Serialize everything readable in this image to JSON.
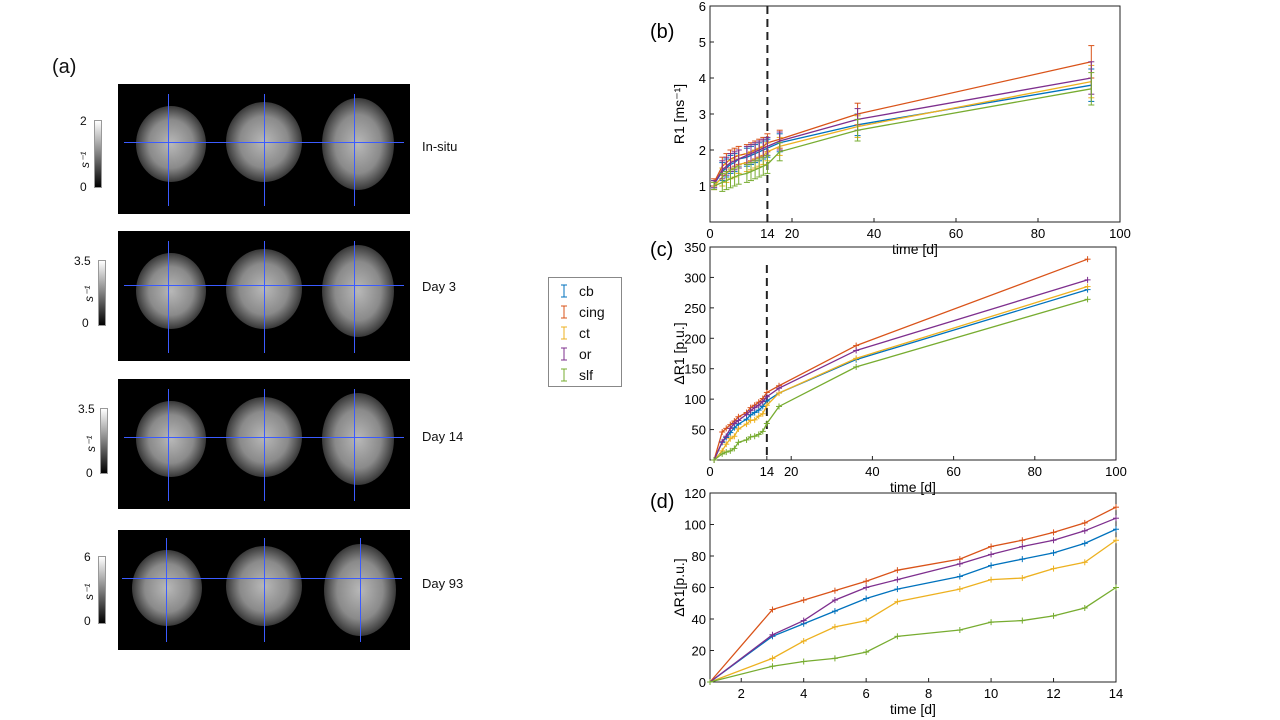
{
  "panel_a": {
    "label": "(a)",
    "rows": [
      {
        "day": "In-situ",
        "cmax": "2",
        "cmin": "0",
        "unit": "s⁻¹"
      },
      {
        "day": "Day 3",
        "cmax": "3.5",
        "cmin": "0",
        "unit": "s⁻¹"
      },
      {
        "day": "Day 14",
        "cmax": "3.5",
        "cmin": "0",
        "unit": "s⁻¹"
      },
      {
        "day": "Day 93",
        "cmax": "6",
        "cmin": "0",
        "unit": "s⁻¹"
      }
    ]
  },
  "legend": {
    "entries": [
      {
        "name": "cb",
        "color": "#0072BD"
      },
      {
        "name": "cing",
        "color": "#D95319"
      },
      {
        "name": "ct",
        "color": "#EDB120"
      },
      {
        "name": "or",
        "color": "#7E2F8E"
      },
      {
        "name": "slf",
        "color": "#77AC30"
      }
    ]
  },
  "chart_data": [
    {
      "panel": "(b)",
      "type": "line",
      "xlabel": "time [d]",
      "ylabel": "R1 [ms⁻¹]",
      "xlim": [
        0,
        100
      ],
      "ylim": [
        0,
        6
      ],
      "xticks": [
        0,
        14,
        20,
        40,
        60,
        80,
        100
      ],
      "yticks": [
        1,
        2,
        3,
        4,
        5,
        6
      ],
      "vline": 14,
      "x": [
        1,
        3,
        4,
        5,
        6,
        7,
        9,
        10,
        11,
        12,
        13,
        14,
        17,
        36,
        93
      ],
      "series": [
        {
          "name": "cb",
          "values": [
            1.05,
            1.4,
            1.5,
            1.6,
            1.65,
            1.75,
            1.8,
            1.85,
            1.9,
            1.95,
            2.0,
            2.05,
            2.2,
            2.7,
            3.8
          ]
        },
        {
          "name": "cing",
          "values": [
            1.1,
            1.55,
            1.65,
            1.75,
            1.8,
            1.85,
            1.9,
            1.95,
            2.0,
            2.05,
            2.1,
            2.2,
            2.3,
            3.0,
            4.45
          ]
        },
        {
          "name": "ct",
          "values": [
            1.0,
            1.25,
            1.35,
            1.45,
            1.5,
            1.6,
            1.65,
            1.7,
            1.75,
            1.8,
            1.85,
            1.95,
            2.1,
            2.65,
            3.9
          ]
        },
        {
          "name": "or",
          "values": [
            1.05,
            1.45,
            1.55,
            1.65,
            1.7,
            1.75,
            1.85,
            1.9,
            1.95,
            2.0,
            2.05,
            2.1,
            2.25,
            2.85,
            4.0
          ]
        },
        {
          "name": "slf",
          "values": [
            1.0,
            1.1,
            1.15,
            1.2,
            1.25,
            1.3,
            1.35,
            1.4,
            1.45,
            1.5,
            1.55,
            1.6,
            1.95,
            2.55,
            3.7
          ]
        }
      ],
      "errors": [
        0.1,
        0.25,
        0.25,
        0.25,
        0.25,
        0.25,
        0.25,
        0.25,
        0.25,
        0.25,
        0.25,
        0.25,
        0.25,
        0.3,
        0.45
      ]
    },
    {
      "panel": "(c)",
      "type": "line",
      "xlabel": "time [d]",
      "ylabel": "ΔR1 [p.u.]",
      "xlim": [
        0,
        100
      ],
      "ylim": [
        0,
        350
      ],
      "xticks": [
        0,
        14,
        20,
        40,
        60,
        80,
        100
      ],
      "yticks": [
        50,
        100,
        150,
        200,
        250,
        300,
        350
      ],
      "vline": 14,
      "x": [
        1,
        3,
        4,
        5,
        6,
        7,
        9,
        10,
        11,
        12,
        13,
        14,
        17,
        36,
        93
      ],
      "series": [
        {
          "name": "cb",
          "values": [
            0,
            29,
            37,
            45,
            53,
            59,
            67,
            74,
            78,
            82,
            88,
            97,
            110,
            165,
            280
          ]
        },
        {
          "name": "cing",
          "values": [
            0,
            46,
            52,
            58,
            64,
            71,
            78,
            86,
            90,
            95,
            101,
            111,
            122,
            188,
            330
          ]
        },
        {
          "name": "ct",
          "values": [
            0,
            15,
            26,
            35,
            39,
            51,
            59,
            65,
            66,
            72,
            76,
            90,
            110,
            167,
            285
          ]
        },
        {
          "name": "or",
          "values": [
            0,
            30,
            39,
            52,
            60,
            65,
            75,
            81,
            86,
            90,
            96,
            104,
            118,
            180,
            296
          ]
        },
        {
          "name": "slf",
          "values": [
            0,
            10,
            13,
            15,
            19,
            29,
            33,
            38,
            39,
            42,
            47,
            60,
            88,
            153,
            264
          ]
        }
      ]
    },
    {
      "panel": "(d)",
      "type": "line",
      "xlabel": "time [d]",
      "ylabel": "ΔR1[p.u.]",
      "xlim": [
        1,
        14
      ],
      "ylim": [
        0,
        120
      ],
      "xticks": [
        2,
        4,
        6,
        8,
        10,
        12,
        14
      ],
      "yticks": [
        0,
        20,
        40,
        60,
        80,
        100,
        120
      ],
      "x": [
        1,
        3,
        4,
        5,
        6,
        7,
        9,
        10,
        11,
        12,
        13,
        14
      ],
      "series": [
        {
          "name": "cb",
          "values": [
            0,
            29,
            37,
            45,
            53,
            59,
            67,
            74,
            78,
            82,
            88,
            97
          ]
        },
        {
          "name": "cing",
          "values": [
            0,
            46,
            52,
            58,
            64,
            71,
            78,
            86,
            90,
            95,
            101,
            111
          ]
        },
        {
          "name": "ct",
          "values": [
            0,
            15,
            26,
            35,
            39,
            51,
            59,
            65,
            66,
            72,
            76,
            90
          ]
        },
        {
          "name": "or",
          "values": [
            0,
            30,
            39,
            52,
            60,
            65,
            75,
            81,
            86,
            90,
            96,
            104
          ]
        },
        {
          "name": "slf",
          "values": [
            0,
            10,
            13,
            15,
            19,
            29,
            33,
            38,
            39,
            42,
            47,
            60
          ]
        }
      ]
    }
  ]
}
